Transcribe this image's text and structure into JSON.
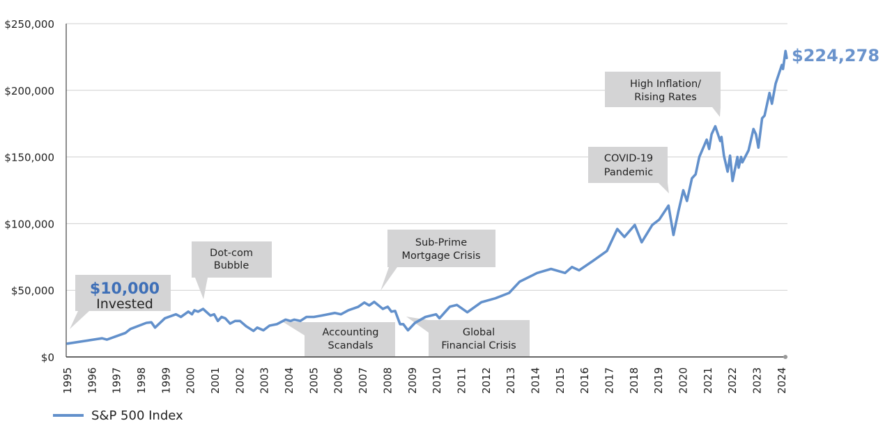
{
  "chart_data": {
    "type": "line",
    "title": "",
    "xlabel": "",
    "ylabel": "",
    "ylim": [
      0,
      250000
    ],
    "xlim": [
      1995,
      2024
    ],
    "grid": true,
    "legend_position": "bottom-left",
    "y_ticks": [
      "$0",
      "$50,000",
      "$100,000",
      "$150,000",
      "$200,000",
      "$250,000"
    ],
    "y_tick_values": [
      0,
      50000,
      100000,
      150000,
      200000,
      250000
    ],
    "x_ticks": [
      "1995",
      "1996",
      "1997",
      "1998",
      "1999",
      "2000",
      "2001",
      "2002",
      "2003",
      "2004",
      "2005",
      "2006",
      "2007",
      "2008",
      "2009",
      "2010",
      "2011",
      "2012",
      "2013",
      "2014",
      "2015",
      "2016",
      "2017",
      "2018",
      "2019",
      "2020",
      "2021",
      "2022",
      "2023",
      "2024"
    ],
    "series": [
      {
        "name": "S&P 500 Index",
        "color": "#6290cb",
        "points": [
          [
            1995.0,
            10000
          ],
          [
            1996.4,
            14000
          ],
          [
            1996.6,
            13000
          ],
          [
            1997.35,
            18000
          ],
          [
            1997.55,
            21000
          ],
          [
            1998.2,
            25600
          ],
          [
            1998.4,
            26000
          ],
          [
            1998.55,
            22000
          ],
          [
            1998.95,
            29000
          ],
          [
            1999.4,
            32000
          ],
          [
            1999.6,
            30000
          ],
          [
            1999.9,
            34000
          ],
          [
            2000.05,
            32000
          ],
          [
            2000.15,
            35000
          ],
          [
            2000.3,
            34000
          ],
          [
            2000.5,
            36000
          ],
          [
            2000.8,
            31000
          ],
          [
            2000.95,
            32000
          ],
          [
            2001.1,
            27000
          ],
          [
            2001.25,
            30000
          ],
          [
            2001.4,
            29000
          ],
          [
            2001.6,
            25000
          ],
          [
            2001.8,
            27000
          ],
          [
            2002.0,
            27000
          ],
          [
            2002.25,
            23000
          ],
          [
            2002.55,
            19500
          ],
          [
            2002.7,
            22000
          ],
          [
            2002.95,
            20000
          ],
          [
            2003.2,
            23500
          ],
          [
            2003.5,
            24600
          ],
          [
            2003.85,
            28000
          ],
          [
            2004.05,
            27000
          ],
          [
            2004.2,
            28000
          ],
          [
            2004.45,
            27000
          ],
          [
            2004.7,
            30000
          ],
          [
            2005.0,
            30000
          ],
          [
            2005.3,
            31000
          ],
          [
            2005.85,
            33000
          ],
          [
            2006.1,
            32000
          ],
          [
            2006.4,
            35000
          ],
          [
            2006.8,
            37600
          ],
          [
            2007.05,
            40800
          ],
          [
            2007.25,
            38700
          ],
          [
            2007.45,
            41300
          ],
          [
            2007.8,
            36000
          ],
          [
            2008.0,
            37700
          ],
          [
            2008.15,
            34000
          ],
          [
            2008.3,
            34500
          ],
          [
            2008.5,
            24600
          ],
          [
            2008.63,
            24600
          ],
          [
            2008.82,
            20000
          ],
          [
            2009.11,
            25600
          ],
          [
            2009.53,
            30000
          ],
          [
            2009.96,
            32000
          ],
          [
            2010.1,
            29000
          ],
          [
            2010.52,
            37700
          ],
          [
            2010.81,
            39000
          ],
          [
            2011.23,
            33500
          ],
          [
            2011.8,
            41000
          ],
          [
            2012.37,
            44000
          ],
          [
            2012.93,
            48000
          ],
          [
            2013.36,
            56500
          ],
          [
            2014.07,
            63000
          ],
          [
            2014.63,
            66000
          ],
          [
            2015.2,
            63000
          ],
          [
            2015.48,
            67500
          ],
          [
            2015.77,
            65000
          ],
          [
            2016.33,
            72000
          ],
          [
            2016.9,
            79500
          ],
          [
            2017.32,
            96000
          ],
          [
            2017.61,
            90000
          ],
          [
            2018.03,
            99000
          ],
          [
            2018.31,
            86000
          ],
          [
            2018.74,
            99000
          ],
          [
            2019.02,
            103000
          ],
          [
            2019.4,
            113500
          ],
          [
            2019.6,
            91500
          ],
          [
            2019.8,
            109000
          ],
          [
            2020.0,
            125000
          ],
          [
            2020.15,
            117000
          ],
          [
            2020.35,
            134000
          ],
          [
            2020.5,
            137000
          ],
          [
            2020.65,
            150000
          ],
          [
            2020.95,
            163000
          ],
          [
            2021.05,
            156000
          ],
          [
            2021.15,
            167000
          ],
          [
            2021.3,
            173000
          ],
          [
            2021.5,
            162000
          ],
          [
            2021.55,
            165000
          ],
          [
            2021.65,
            151000
          ],
          [
            2021.8,
            139000
          ],
          [
            2021.9,
            151000
          ],
          [
            2022.0,
            132000
          ],
          [
            2022.2,
            150000
          ],
          [
            2022.25,
            142000
          ],
          [
            2022.35,
            150000
          ],
          [
            2022.4,
            146000
          ],
          [
            2022.65,
            155000
          ],
          [
            2022.85,
            171000
          ],
          [
            2022.95,
            167000
          ],
          [
            2023.05,
            157000
          ],
          [
            2023.2,
            179000
          ],
          [
            2023.3,
            181000
          ],
          [
            2023.5,
            198000
          ],
          [
            2023.6,
            190000
          ],
          [
            2023.75,
            205000
          ],
          [
            2024.0,
            219000
          ],
          [
            2024.05,
            216000
          ],
          [
            2024.15,
            229500
          ],
          [
            2024.2,
            224278
          ]
        ]
      }
    ],
    "end_label": "$224,278",
    "annotations": [
      {
        "id": "invested",
        "line1": "$10,000",
        "line2": "Invested"
      },
      {
        "id": "dotcom",
        "line1": "Dot-com",
        "line2": "Bubble"
      },
      {
        "id": "accounting",
        "line1": "Accounting",
        "line2": "Scandals"
      },
      {
        "id": "subprime",
        "line1": "Sub-Prime",
        "line2": "Mortgage Crisis"
      },
      {
        "id": "gfc",
        "line1": "Global",
        "line2": "Financial Crisis"
      },
      {
        "id": "covid",
        "line1": "COVID-19",
        "line2": "Pandemic"
      },
      {
        "id": "inflation",
        "line1": "High Inflation/",
        "line2": "Rising Rates"
      }
    ]
  }
}
